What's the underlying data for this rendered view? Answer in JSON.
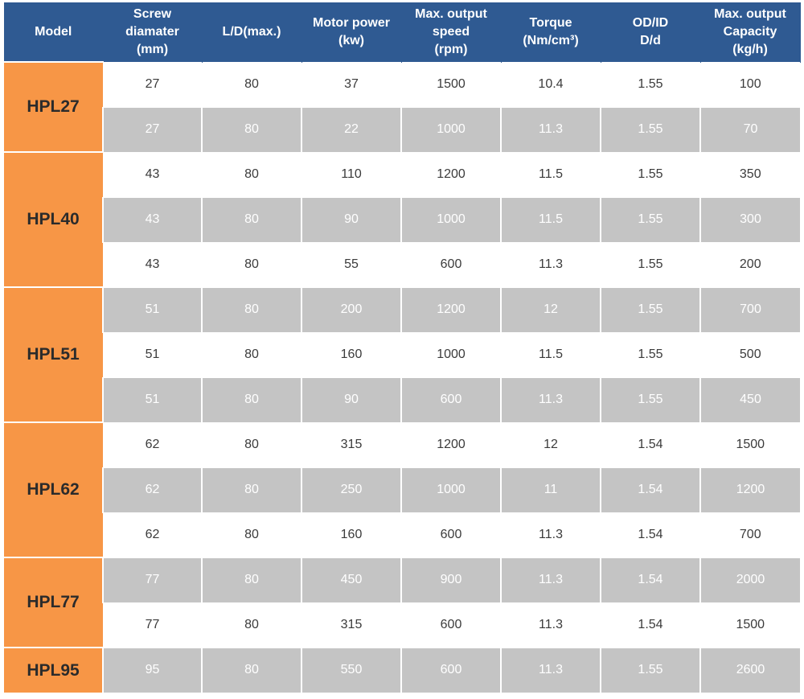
{
  "headers": [
    "Model",
    "Screw\ndiamater\n(mm)",
    "L/D(max.)",
    "Motor power\n(kw)",
    "Max. output\nspeed\n(rpm)",
    "Torque\n(Nm/cm³)",
    "OD/ID\nD/d",
    "Max. output\nCapacity\n(kg/h)"
  ],
  "groups": [
    {
      "model": "HPL27",
      "rows": [
        {
          "shade": false,
          "cells": [
            "27",
            "80",
            "37",
            "1500",
            "10.4",
            "1.55",
            "100"
          ]
        },
        {
          "shade": true,
          "cells": [
            "27",
            "80",
            "22",
            "1000",
            "11.3",
            "1.55",
            "70"
          ]
        }
      ]
    },
    {
      "model": "HPL40",
      "rows": [
        {
          "shade": false,
          "cells": [
            "43",
            "80",
            "110",
            "1200",
            "11.5",
            "1.55",
            "350"
          ]
        },
        {
          "shade": true,
          "cells": [
            "43",
            "80",
            "90",
            "1000",
            "11.5",
            "1.55",
            "300"
          ]
        },
        {
          "shade": false,
          "cells": [
            "43",
            "80",
            "55",
            "600",
            "11.3",
            "1.55",
            "200"
          ]
        }
      ]
    },
    {
      "model": "HPL51",
      "rows": [
        {
          "shade": true,
          "cells": [
            "51",
            "80",
            "200",
            "1200",
            "12",
            "1.55",
            "700"
          ]
        },
        {
          "shade": false,
          "cells": [
            "51",
            "80",
            "160",
            "1000",
            "11.5",
            "1.55",
            "500"
          ]
        },
        {
          "shade": true,
          "cells": [
            "51",
            "80",
            "90",
            "600",
            "11.3",
            "1.55",
            "450"
          ]
        }
      ]
    },
    {
      "model": "HPL62",
      "rows": [
        {
          "shade": false,
          "cells": [
            "62",
            "80",
            "315",
            "1200",
            "12",
            "1.54",
            "1500"
          ]
        },
        {
          "shade": true,
          "cells": [
            "62",
            "80",
            "250",
            "1000",
            "11",
            "1.54",
            "1200"
          ]
        },
        {
          "shade": false,
          "cells": [
            "62",
            "80",
            "160",
            "600",
            "11.3",
            "1.54",
            "700"
          ]
        }
      ]
    },
    {
      "model": "HPL77",
      "rows": [
        {
          "shade": true,
          "cells": [
            "77",
            "80",
            "450",
            "900",
            "11.3",
            "1.54",
            "2000"
          ]
        },
        {
          "shade": false,
          "cells": [
            "77",
            "80",
            "315",
            "600",
            "11.3",
            "1.54",
            "1500"
          ]
        }
      ]
    },
    {
      "model": "HPL95",
      "rows": [
        {
          "shade": true,
          "cells": [
            "95",
            "80",
            "550",
            "600",
            "11.3",
            "1.55",
            "2600"
          ]
        }
      ]
    }
  ],
  "colors": {
    "header_bg": "#2f5a92",
    "model_bg": "#f79646",
    "shaded_row_bg": "#c4c4c4",
    "plain_row_bg": "#ffffff"
  }
}
